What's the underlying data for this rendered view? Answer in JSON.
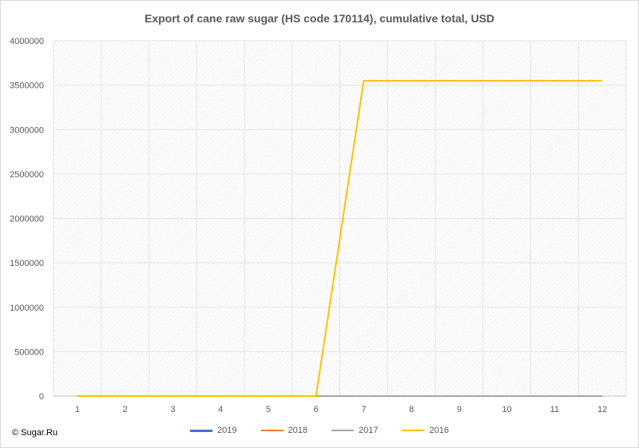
{
  "chart_data": {
    "type": "line",
    "title": "Export of cane raw sugar (HS code 170114), cumulative total, USD",
    "categories": [
      "1",
      "2",
      "3",
      "4",
      "5",
      "6",
      "7",
      "8",
      "9",
      "10",
      "11",
      "12"
    ],
    "ylim": [
      0,
      4000000
    ],
    "yticks": [
      "0",
      "500000",
      "1000000",
      "1500000",
      "2000000",
      "2500000",
      "3000000",
      "3500000",
      "4000000"
    ],
    "grid": true,
    "legend_position": "bottom",
    "series": [
      {
        "name": "2019",
        "color": "#4472c4",
        "values": [
          0,
          0,
          0,
          0,
          0,
          0,
          0,
          0,
          0,
          0,
          0,
          0
        ]
      },
      {
        "name": "2018",
        "color": "#ed7d31",
        "values": [
          0,
          0,
          0,
          0,
          0,
          0,
          0,
          0,
          0,
          0,
          0,
          0
        ]
      },
      {
        "name": "2017",
        "color": "#a5a5a5",
        "values": [
          0,
          0,
          0,
          0,
          0,
          0,
          0,
          0,
          0,
          0,
          0,
          0
        ]
      },
      {
        "name": "2016",
        "color": "#ffc000",
        "values": [
          0,
          0,
          0,
          0,
          0,
          0,
          3550000,
          3550000,
          3550000,
          3550000,
          3550000,
          3550000
        ]
      }
    ]
  },
  "footer": {
    "copyright": "© Sugar.Ru"
  }
}
